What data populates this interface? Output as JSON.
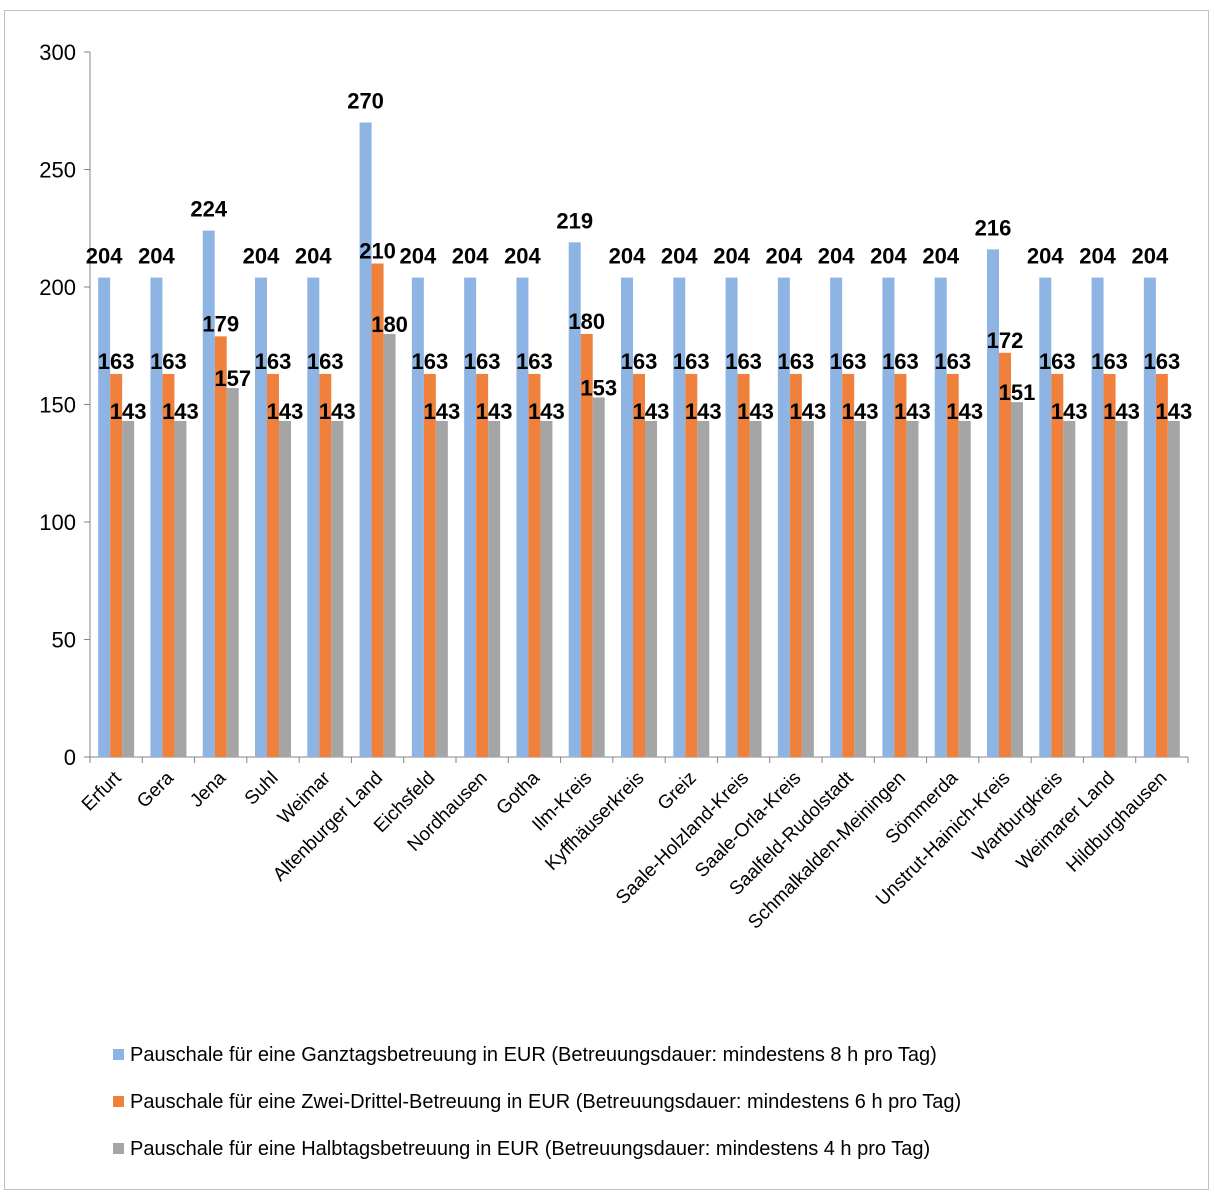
{
  "chart_data": {
    "type": "bar",
    "title": "",
    "xlabel": "",
    "ylabel": "",
    "ylim": [
      0,
      300
    ],
    "yticks": [
      0,
      50,
      100,
      150,
      200,
      250,
      300
    ],
    "grid": false,
    "legend_position": "bottom",
    "categories": [
      "Erfurt",
      "Gera",
      "Jena",
      "Suhl",
      "Weimar",
      "Altenburger Land",
      "Eichsfeld",
      "Nordhausen",
      "Gotha",
      "Ilm-Kreis",
      "Kyffhäuserkreis",
      "Greiz",
      "Saale-Holzland-Kreis",
      "Saale-Orla-Kreis",
      "Saalfeld-Rudolstadt",
      "Schmalkalden-Meiningen",
      "Sömmerda",
      "Unstrut-Hainich-Kreis",
      "Wartburgkreis",
      "Weimarer Land",
      "Hildburghausen"
    ],
    "series": [
      {
        "name": "Pauschale für eine Ganztagsbetreuung in EUR (Betreuungsdauer: mindestens 8 h pro Tag)",
        "color": "#8eb4e3",
        "values": [
          204,
          204,
          224,
          204,
          204,
          270,
          204,
          204,
          204,
          219,
          204,
          204,
          204,
          204,
          204,
          204,
          204,
          216,
          204,
          204,
          204
        ]
      },
      {
        "name": "Pauschale für eine Zwei-Drittel-Betreuung in EUR (Betreuungsdauer: mindestens 6 h pro Tag)",
        "color": "#f0813c",
        "values": [
          163,
          163,
          179,
          163,
          163,
          210,
          163,
          163,
          163,
          180,
          163,
          163,
          163,
          163,
          163,
          163,
          163,
          172,
          163,
          163,
          163
        ]
      },
      {
        "name": "Pauschale für eine Halbtagsbetreuung in EUR (Betreuungsdauer: mindestens 4 h pro Tag)",
        "color": "#a5a5a5",
        "values": [
          143,
          143,
          157,
          143,
          143,
          180,
          143,
          143,
          143,
          153,
          143,
          143,
          143,
          143,
          143,
          143,
          143,
          151,
          143,
          143,
          143
        ]
      }
    ]
  }
}
